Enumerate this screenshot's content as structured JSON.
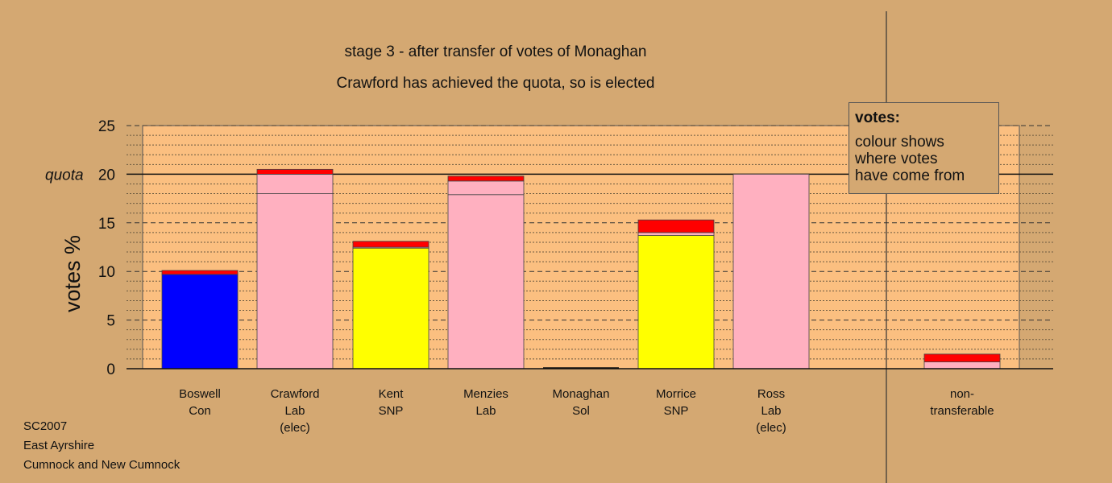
{
  "chart_data": {
    "type": "bar",
    "stacked": true,
    "title": "stage 3 - after transfer of votes of Monaghan",
    "subtitle": "Crawford has achieved the quota, so is elected",
    "ylabel": "votes %",
    "ylim": [
      0,
      25
    ],
    "yticks": [
      "0",
      "5",
      "10",
      "15",
      "20",
      "25"
    ],
    "quota": {
      "label": "quota",
      "value": 20
    },
    "grid": "dashed major lines every 5, dotted minor lines every 1",
    "legend_placement": "top-right",
    "categories": [
      {
        "lines": [
          "Boswell",
          "Con"
        ],
        "segments": [
          {
            "value": 9.7,
            "color": "#0000ff"
          },
          {
            "value": 0.4,
            "color": "#ff0000"
          }
        ]
      },
      {
        "lines": [
          "Crawford",
          "Lab",
          "(elec)"
        ],
        "segments": [
          {
            "value": 18.0,
            "color": "#ffb0c0"
          },
          {
            "value": 2.0,
            "color": "#ffb0c0"
          },
          {
            "value": 0.5,
            "color": "#ff0000"
          }
        ]
      },
      {
        "lines": [
          "Kent",
          "SNP"
        ],
        "segments": [
          {
            "value": 12.4,
            "color": "#ffff00"
          },
          {
            "value": 0.1,
            "color": "#ffb0c0"
          },
          {
            "value": 0.6,
            "color": "#ff0000"
          }
        ]
      },
      {
        "lines": [
          "Menzies",
          "Lab"
        ],
        "segments": [
          {
            "value": 17.9,
            "color": "#ffb0c0"
          },
          {
            "value": 1.4,
            "color": "#ffb0c0"
          },
          {
            "value": 0.5,
            "color": "#ff0000"
          }
        ]
      },
      {
        "lines": [
          "Monaghan",
          "Sol"
        ],
        "segments": []
      },
      {
        "lines": [
          "Morrice",
          "SNP"
        ],
        "segments": [
          {
            "value": 13.7,
            "color": "#ffff00"
          },
          {
            "value": 0.3,
            "color": "#ffb0c0"
          },
          {
            "value": 1.3,
            "color": "#ff0000"
          }
        ]
      },
      {
        "lines": [
          "Ross",
          "Lab",
          "(elec)"
        ],
        "segments": [
          {
            "value": 20.0,
            "color": "#ffb0c0"
          }
        ]
      },
      {
        "lines": [
          "non-",
          "transferable"
        ],
        "segments": [
          {
            "value": 0.7,
            "color": "#ffb0c0"
          },
          {
            "value": 0.8,
            "color": "#ff0000"
          }
        ]
      }
    ]
  },
  "legend": {
    "title": "votes:",
    "lines": [
      "colour shows",
      "where votes",
      "have come from"
    ]
  },
  "footer": [
    "SC2007",
    "East Ayrshire",
    "Cumnock and New Cumnock"
  ]
}
